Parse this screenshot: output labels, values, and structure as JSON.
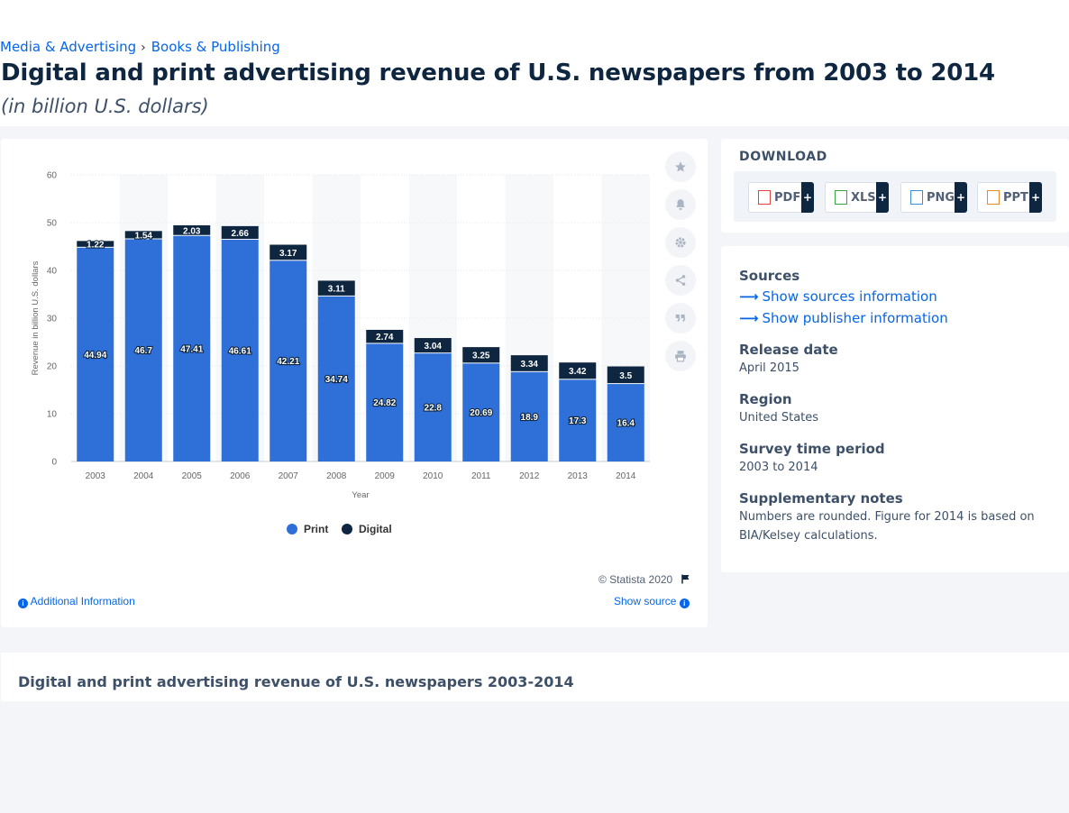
{
  "breadcrumb": {
    "items": [
      "Media & Advertising",
      "Books & Publishing"
    ],
    "separator": "›"
  },
  "page": {
    "title": "Digital and print advertising revenue of U.S. newspapers from 2003 to 2014",
    "subtitle": "(in billion U.S. dollars)"
  },
  "chart_data": {
    "type": "bar",
    "stacked": true,
    "categories": [
      "2003",
      "2004",
      "2005",
      "2006",
      "2007",
      "2008",
      "2009",
      "2010",
      "2011",
      "2012",
      "2013",
      "2014"
    ],
    "series": [
      {
        "name": "Print",
        "color": "#2f6fd8",
        "values": [
          44.94,
          46.7,
          47.41,
          46.61,
          42.21,
          34.74,
          24.82,
          22.8,
          20.69,
          18.9,
          17.3,
          16.4
        ]
      },
      {
        "name": "Digital",
        "color": "#0f2640",
        "values": [
          1.22,
          1.54,
          2.03,
          2.66,
          3.17,
          3.11,
          2.74,
          3.04,
          3.25,
          3.34,
          3.42,
          3.5
        ]
      }
    ],
    "xlabel": "Year",
    "ylabel": "Revenue in billion U.S. dollars",
    "ylim": [
      0,
      60
    ],
    "yticks": [
      0,
      10,
      20,
      30,
      40,
      50,
      60
    ],
    "grid": true,
    "legend": "bottom-center"
  },
  "chart_footer": {
    "copyright": "© Statista 2020",
    "additional_info": "Additional Information",
    "show_source": "Show source"
  },
  "download": {
    "title": "DOWNLOAD",
    "formats": [
      "PDF",
      "XLS",
      "PNG",
      "PPT"
    ],
    "plus": "+"
  },
  "meta": {
    "sources_label": "Sources",
    "show_sources": "Show sources information",
    "show_publisher": "Show publisher information",
    "release_label": "Release date",
    "release_value": "April 2015",
    "region_label": "Region",
    "region_value": "United States",
    "survey_label": "Survey time period",
    "survey_value": "2003 to 2014",
    "notes_label": "Supplementary notes",
    "notes_line1": "Numbers are rounded. Figure for 2014 is based on",
    "notes_line2": "BIA/Kelsey calculations."
  },
  "related": {
    "title": "Digital and print advertising revenue of U.S. newspapers 2003-2014"
  },
  "icons": [
    "star-icon",
    "bell-icon",
    "gear-icon",
    "share-icon",
    "quote-icon",
    "print-icon",
    "flag-icon",
    "info-icon",
    "arrow-right-icon",
    "pdf-file-icon",
    "xls-file-icon",
    "png-file-icon",
    "ppt-file-icon"
  ]
}
